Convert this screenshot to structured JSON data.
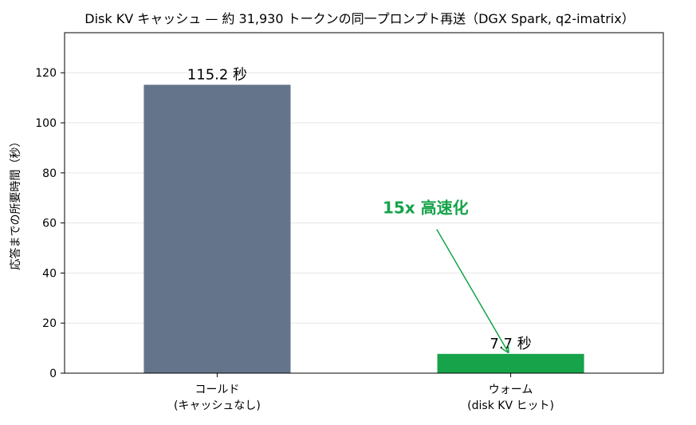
{
  "chart_data": {
    "type": "bar",
    "title": "Disk KV キャッシュ — 約 31,930 トークンの同一プロンプト再送（DGX Spark, q2-imatrix）",
    "xlabel": "",
    "ylabel": "応答までの所要時間（秒）",
    "ylim": [
      0,
      136
    ],
    "yticks": [
      0,
      20,
      40,
      60,
      80,
      100,
      120
    ],
    "grid": "horizontal",
    "categories": [
      [
        "コールド",
        "(キャッシュなし)"
      ],
      [
        "ウォーム",
        "(disk KV ヒット)"
      ]
    ],
    "values": [
      115.2,
      7.7
    ],
    "data_labels": [
      "115.2 秒",
      "7.7 秒"
    ],
    "colors": [
      "#64748b",
      "#16a34a"
    ],
    "annotation": {
      "text": "15x 高速化",
      "color": "#16a34a",
      "points_to_category": 1,
      "points_to_value": 7.7
    }
  }
}
